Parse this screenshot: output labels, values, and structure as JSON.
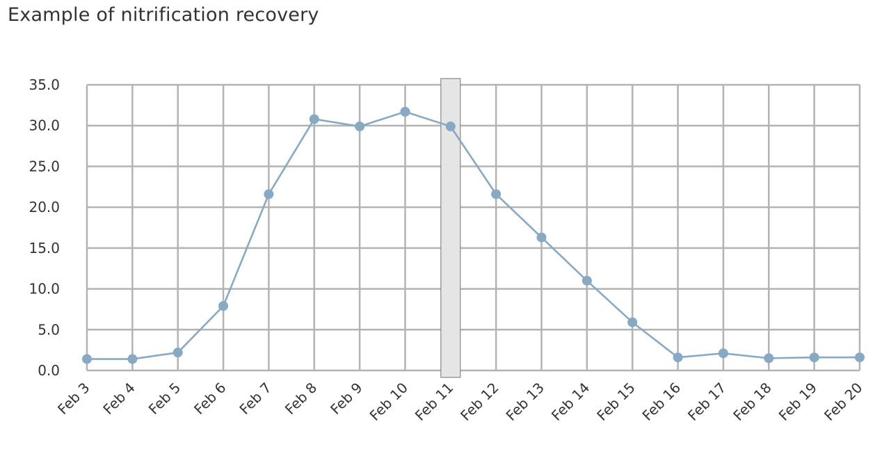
{
  "chart_data": {
    "type": "line",
    "title": "Example of nitrification recovery",
    "xlabel": "",
    "ylabel": "",
    "categories": [
      "Feb 3",
      "Feb 4",
      "Feb 5",
      "Feb 6",
      "Feb 7",
      "Feb 8",
      "Feb 9",
      "Feb 10",
      "Feb 11",
      "Feb 12",
      "Feb 13",
      "Feb 14",
      "Feb 15",
      "Feb 16",
      "Feb 17",
      "Feb 18",
      "Feb 19",
      "Feb 20"
    ],
    "series": [
      {
        "values": [
          1.4,
          1.4,
          2.2,
          7.9,
          21.6,
          30.8,
          29.9,
          31.7,
          29.9,
          21.6,
          16.3,
          11.0,
          5.9,
          1.6,
          2.1,
          1.5,
          1.6,
          1.6
        ],
        "color": "#87a9c4"
      }
    ],
    "ylim": [
      0,
      35
    ],
    "y_ticks": [
      "0.0",
      "5.0",
      "10.0",
      "15.0",
      "20.0",
      "25.0",
      "30.0",
      "35.0"
    ],
    "grid": true,
    "highlight": {
      "category": "Feb 11",
      "color": "#e5e5e5",
      "border_color": "#888888"
    },
    "grid_color": "#b3b3b3",
    "legend": "none"
  }
}
